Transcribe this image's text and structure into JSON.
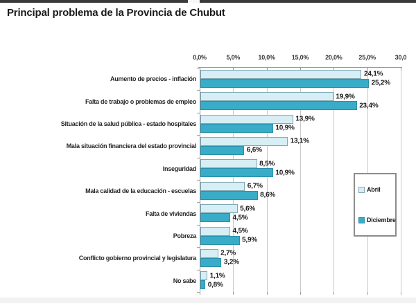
{
  "title": "Principal problema de la Provincia de Chubut",
  "chart_data": {
    "type": "bar",
    "orientation": "horizontal",
    "title": "Principal problema de la Provincia de Chubut",
    "categories": [
      "Aumento de precios - inflación",
      "Falta de trabajo o problemas de empleo",
      "Situación de la salud pública - estado hospitales",
      "Mala situación financiera del estado provincial",
      "Inseguridad",
      "Mala calidad de la educación - escuelas",
      "Falta de viviendas",
      "Pobreza",
      "Conflicto gobierno provincial y legislatura",
      "No sabe"
    ],
    "series": [
      {
        "name": "Abril",
        "color": "#d7eef5",
        "border_color": "#7fa8b4",
        "values": [
          24.1,
          19.9,
          13.9,
          13.1,
          8.5,
          6.7,
          5.6,
          4.5,
          2.7,
          1.1
        ],
        "labels": [
          "24,1%",
          "19,9%",
          "13,9%",
          "13,1%",
          "8,5%",
          "6,7%",
          "5,6%",
          "4,5%",
          "2,7%",
          "1,1%"
        ]
      },
      {
        "name": "Diciembre",
        "color": "#39adc8",
        "border_color": "#2b8fa8",
        "values": [
          25.2,
          23.4,
          10.9,
          6.6,
          10.9,
          8.6,
          4.5,
          5.9,
          3.2,
          0.8
        ],
        "labels": [
          "25,2%",
          "23,4%",
          "10,9%",
          "6,6%",
          "10,9%",
          "8,6%",
          "4,5%",
          "5,9%",
          "3,2%",
          "0,8%"
        ]
      }
    ],
    "x_axis": {
      "position": "top",
      "min": 0,
      "max": 30,
      "tick_values": [
        0,
        5,
        10,
        15,
        20,
        25,
        30
      ],
      "tick_labels": [
        "0,0%",
        "5,0%",
        "10,0%",
        "15,0%",
        "20,0%",
        "25,0%",
        "30,0"
      ]
    },
    "legend": {
      "position": "right",
      "entries": [
        "Abril",
        "Diciembre"
      ]
    },
    "grid": true
  }
}
